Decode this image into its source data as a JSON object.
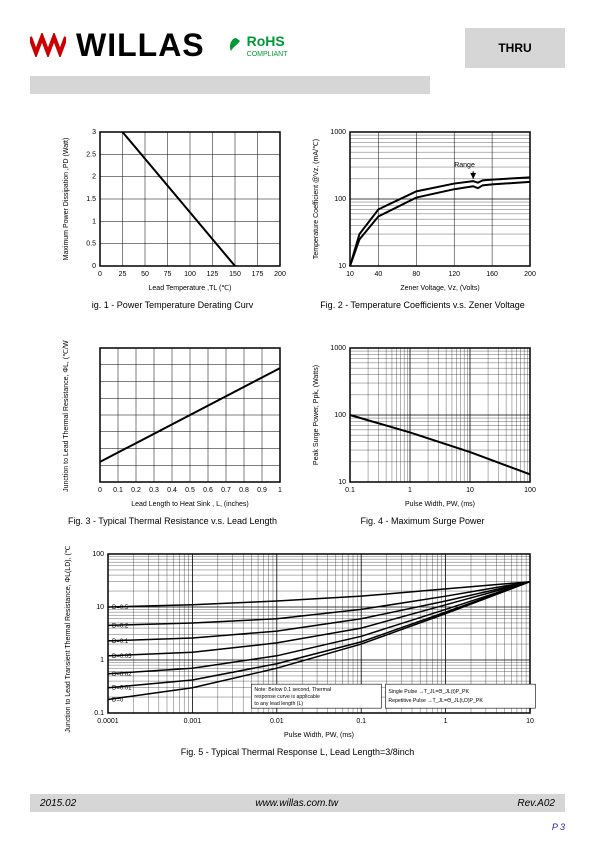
{
  "header": {
    "brand": "WILLAS",
    "rohs_text": "RoHS",
    "rohs_sub": "COMPLIANT",
    "thru": "THRU"
  },
  "fig1": {
    "caption": "ig. 1 - Power Temperature Derating Curv",
    "xlabel": "Lead Temperature ,TL  (℃)",
    "ylabel": "Maximum Power Dissipation ,PD  (Watt)",
    "xlim": [
      0,
      200
    ],
    "ylim": [
      0,
      3.0
    ],
    "xticks": [
      0,
      25,
      50,
      75,
      100,
      125,
      150,
      175,
      200
    ],
    "yticks": [
      0.0,
      0.5,
      1.0,
      1.5,
      2.0,
      2.5,
      3.0
    ],
    "line": [
      [
        25,
        3.0
      ],
      [
        150,
        0.0
      ]
    ],
    "line_color": "#000000",
    "line_width": 2,
    "grid_color": "#000000",
    "bg_color": "#ffffff",
    "label_fontsize": 7
  },
  "fig2": {
    "caption": "Fig. 2 - Temperature Coefficients v.s. Zener Voltage",
    "xlabel": "Zener Voltage, Vz, (Volts)",
    "ylabel": "Temperature Coefficient @Vz,  (mA/℃)",
    "xlim": [
      10,
      200
    ],
    "ylim": [
      10,
      1000
    ],
    "xticks": [
      10,
      40,
      80,
      120,
      160,
      200
    ],
    "yticks": [
      10,
      100,
      1000
    ],
    "range_label": "Range",
    "curves": [
      [
        [
          10,
          10
        ],
        [
          20,
          30
        ],
        [
          40,
          70
        ],
        [
          80,
          130
        ],
        [
          120,
          170
        ],
        [
          140,
          185
        ],
        [
          145,
          175
        ],
        [
          150,
          190
        ],
        [
          160,
          195
        ],
        [
          200,
          210
        ]
      ],
      [
        [
          10,
          10
        ],
        [
          20,
          25
        ],
        [
          40,
          55
        ],
        [
          80,
          105
        ],
        [
          120,
          140
        ],
        [
          140,
          155
        ],
        [
          145,
          145
        ],
        [
          150,
          160
        ],
        [
          160,
          165
        ],
        [
          200,
          180
        ]
      ]
    ],
    "line_color": "#000000",
    "line_width": 2,
    "grid_color": "#000000",
    "bg_color": "#ffffff",
    "label_fontsize": 7,
    "yscale": "log"
  },
  "fig3": {
    "caption": "Fig. 3 - Typical Thermal Resistance v.s. Lead Length",
    "xlabel": "Lead Length to Heat Sink , L, (inches)",
    "ylabel": "Junction to Lead Thermal Resistance, ΦL, (℃/W)",
    "xlim": [
      0,
      1
    ],
    "ylim": [
      0,
      80
    ],
    "xticks": [
      0,
      0.1,
      0.2,
      0.3,
      0.4,
      0.5,
      0.6,
      0.7,
      0.8,
      0.9,
      1
    ],
    "yticks_count": 8,
    "line": [
      [
        0,
        12
      ],
      [
        1,
        68
      ]
    ],
    "line_color": "#000000",
    "line_width": 2,
    "grid_color": "#000000",
    "bg_color": "#ffffff",
    "label_fontsize": 7
  },
  "fig4": {
    "caption": "Fig. 4 - Maximum Surge Power",
    "xlabel": "Pulse Width, PW, (ms)",
    "ylabel": "Peak Surge Power, Ppk, (Watts)",
    "xlim": [
      0.1,
      100
    ],
    "ylim": [
      10,
      1000
    ],
    "xticks": [
      0.1,
      1,
      10,
      100
    ],
    "yticks": [
      10,
      100,
      1000
    ],
    "line": [
      [
        0.1,
        100
      ],
      [
        1,
        55
      ],
      [
        10,
        28
      ],
      [
        100,
        13
      ]
    ],
    "line_color": "#000000",
    "line_width": 2,
    "grid_color": "#000000",
    "bg_color": "#ffffff",
    "label_fontsize": 7,
    "xscale": "log",
    "yscale": "log"
  },
  "fig5": {
    "caption": "Fig. 5 - Typical Thermal Response L, Lead Length=3/8inch",
    "xlabel": "Pulse Width, PW, (ms)",
    "ylabel": "Junction to Lead Transient Thermal Resistance, ΦL(LD),  (℃/W)",
    "xlim": [
      0.0001,
      10
    ],
    "ylim": [
      0.1,
      100
    ],
    "xticks": [
      0.0001,
      0.001,
      0.01,
      0.1,
      1,
      10
    ],
    "yticks": [
      0.1,
      1,
      10,
      100
    ],
    "series_labels": [
      "D=0.5",
      "D=0.2",
      "D=0.1",
      "D=0.05",
      "D=0.02",
      "D=0.01",
      "D=0"
    ],
    "curves": [
      [
        [
          0.0001,
          10
        ],
        [
          0.001,
          11
        ],
        [
          0.01,
          13
        ],
        [
          0.1,
          16
        ],
        [
          1,
          22
        ],
        [
          10,
          30
        ]
      ],
      [
        [
          0.0001,
          4.5
        ],
        [
          0.001,
          5
        ],
        [
          0.01,
          6
        ],
        [
          0.1,
          9
        ],
        [
          1,
          16
        ],
        [
          10,
          30
        ]
      ],
      [
        [
          0.0001,
          2.3
        ],
        [
          0.001,
          2.6
        ],
        [
          0.01,
          3.5
        ],
        [
          0.1,
          6
        ],
        [
          1,
          13
        ],
        [
          10,
          30
        ]
      ],
      [
        [
          0.0001,
          1.2
        ],
        [
          0.001,
          1.4
        ],
        [
          0.01,
          2.1
        ],
        [
          0.1,
          4
        ],
        [
          1,
          11
        ],
        [
          10,
          30
        ]
      ],
      [
        [
          0.0001,
          0.55
        ],
        [
          0.001,
          0.7
        ],
        [
          0.01,
          1.2
        ],
        [
          0.1,
          2.8
        ],
        [
          1,
          9
        ],
        [
          10,
          30
        ]
      ],
      [
        [
          0.0001,
          0.3
        ],
        [
          0.001,
          0.42
        ],
        [
          0.01,
          0.85
        ],
        [
          0.1,
          2.2
        ],
        [
          1,
          8
        ],
        [
          10,
          30
        ]
      ],
      [
        [
          0.0001,
          0.18
        ],
        [
          0.001,
          0.3
        ],
        [
          0.01,
          0.7
        ],
        [
          0.1,
          2
        ],
        [
          1,
          7.5
        ],
        [
          10,
          30
        ]
      ]
    ],
    "note1_lines": [
      "Note: Below 0.1 second, Thermal",
      "response curve is applicable",
      "to any lead length (L)"
    ],
    "note2_lines": [
      "Single Pulse →T_JL=Θ_JL(t)P_PK",
      "Repetitive Pulse →T_JL=Θ_JL(t,D)P_PK"
    ],
    "line_color": "#000000",
    "line_width": 1.5,
    "grid_color": "#000000",
    "bg_color": "#ffffff",
    "label_fontsize": 7,
    "xscale": "log",
    "yscale": "log"
  },
  "footer": {
    "date": "2015.02",
    "url": "www.willas.com.tw",
    "rev": "Rev.A02",
    "page": "P 3"
  }
}
